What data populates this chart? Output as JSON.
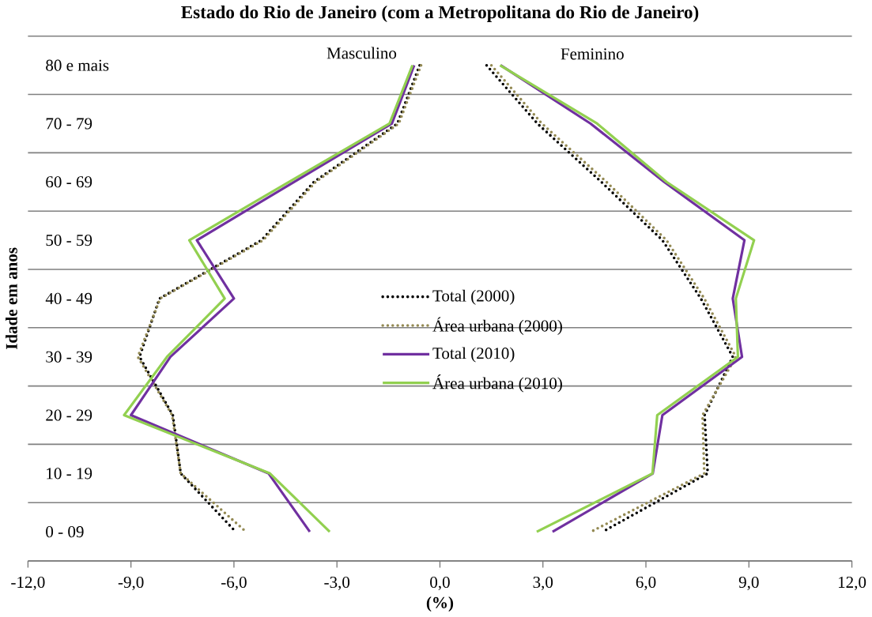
{
  "chart_data": {
    "type": "line",
    "orientation": "horizontal",
    "title": "Estado do Rio de Janeiro (com a Metropolitana do Rio de Janeiro)",
    "xlabel": "(%)",
    "ylabel": "Idade em anos",
    "categories": [
      "80 e mais",
      "70 - 79",
      "60 - 69",
      "50 - 59",
      "40 - 49",
      "30 - 39",
      "20 - 29",
      "10 - 19",
      "0 - 09"
    ],
    "xlim": [
      -12,
      12
    ],
    "xticks": [
      {
        "value": -12,
        "label": "-12,0"
      },
      {
        "value": -9,
        "label": "-9,0"
      },
      {
        "value": -6,
        "label": "-6,0"
      },
      {
        "value": -3,
        "label": "-3,0"
      },
      {
        "value": 0,
        "label": "0,0"
      },
      {
        "value": 3,
        "label": "3,0"
      },
      {
        "value": 6,
        "label": "6,0"
      },
      {
        "value": 9,
        "label": "9,0"
      },
      {
        "value": 12,
        "label": "12,0"
      }
    ],
    "grid": "y",
    "legend": "center",
    "annotations": [
      "Masculino",
      "Feminino"
    ],
    "series": [
      {
        "name": "Total (2000)",
        "color": "#000000",
        "line_style": "dotted",
        "values": [
          -0.59,
          -1.24,
          -3.67,
          -5.2,
          -8.17,
          -8.75,
          -7.78,
          -7.55,
          -5.95
        ]
      },
      {
        "name": "Área urbana (2000)",
        "color": "#948a54",
        "line_style": "dotted",
        "values": [
          -0.55,
          -1.2,
          -3.62,
          -5.15,
          -8.15,
          -8.8,
          -7.8,
          -7.55,
          -5.65
        ]
      },
      {
        "name": "Total (2010)",
        "color": "#7030a0",
        "line_style": "solid",
        "values": [
          -0.75,
          -1.4,
          -4.25,
          -7.08,
          -6.0,
          -7.85,
          -9.0,
          -4.99,
          -3.79
        ]
      },
      {
        "name": "Área urbana (2010)",
        "color": "#92d050",
        "line_style": "solid",
        "values": [
          -0.8,
          -1.47,
          -4.4,
          -7.3,
          -6.27,
          -7.95,
          -9.2,
          -4.95,
          -3.21
        ]
      },
      {
        "color": "#000000",
        "line_style": "dotted",
        "values": [
          1.36,
          2.84,
          4.7,
          6.48,
          7.6,
          8.53,
          7.71,
          7.8,
          4.74
        ]
      },
      {
        "color": "#948a54",
        "line_style": "dotted",
        "values": [
          1.5,
          2.97,
          4.85,
          6.6,
          7.7,
          8.62,
          7.65,
          7.7,
          4.4
        ]
      },
      {
        "color": "#7030a0",
        "line_style": "solid",
        "values": [
          1.77,
          4.39,
          6.53,
          8.87,
          8.53,
          8.8,
          6.48,
          6.2,
          3.28
        ]
      },
      {
        "color": "#92d050",
        "line_style": "solid",
        "values": [
          1.75,
          4.58,
          6.6,
          9.15,
          8.62,
          8.68,
          6.33,
          6.19,
          2.82
        ]
      }
    ]
  }
}
